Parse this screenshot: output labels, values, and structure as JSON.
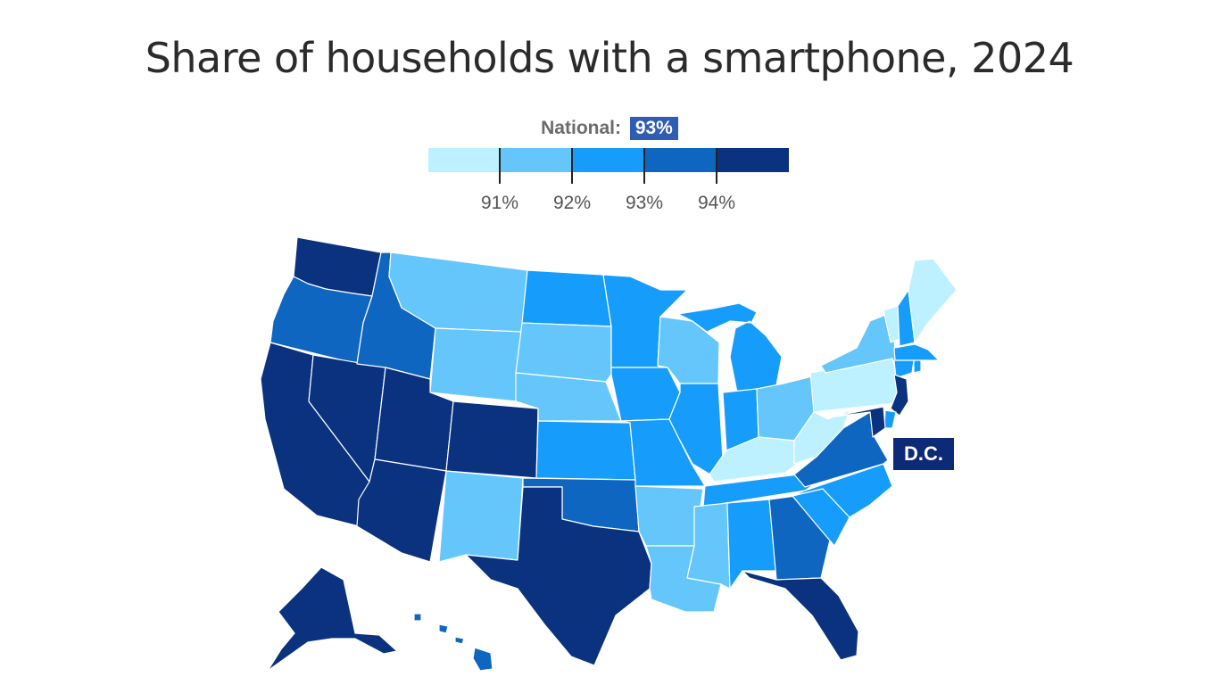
{
  "title": "Share of households with a smartphone, 2024",
  "national": {
    "label": "National:",
    "value": "93%"
  },
  "legend": {
    "colors": [
      "#bdf1ff",
      "#64c6fb",
      "#169cfb",
      "#0e66c0",
      "#0a327f"
    ],
    "tick_labels": [
      "91%",
      "92%",
      "93%",
      "94%"
    ]
  },
  "dc_label": "D.C.",
  "state_colors": {
    "WA": "#0a327f",
    "OR": "#0e66c0",
    "CA": "#0a327f",
    "NV": "#0a327f",
    "ID": "#0e66c0",
    "MT": "#64c6fb",
    "WY": "#64c6fb",
    "UT": "#0a327f",
    "AZ": "#0a327f",
    "CO": "#0a327f",
    "NM": "#64c6fb",
    "ND": "#169cfb",
    "SD": "#64c6fb",
    "NE": "#64c6fb",
    "KS": "#169cfb",
    "OK": "#0e66c0",
    "TX": "#0a327f",
    "MN": "#169cfb",
    "IA": "#169cfb",
    "MO": "#169cfb",
    "AR": "#64c6fb",
    "LA": "#64c6fb",
    "WI": "#64c6fb",
    "IL": "#169cfb",
    "MI": "#169cfb",
    "IN": "#169cfb",
    "OH": "#64c6fb",
    "KY": "#bdf1ff",
    "TN": "#169cfb",
    "MS": "#64c6fb",
    "AL": "#169cfb",
    "GA": "#0e66c0",
    "FL": "#0a327f",
    "SC": "#169cfb",
    "NC": "#169cfb",
    "VA": "#0e66c0",
    "WV": "#bdf1ff",
    "PA": "#bdf1ff",
    "NY": "#64c6fb",
    "VT": "#bdf1ff",
    "NH": "#169cfb",
    "ME": "#bdf1ff",
    "MA": "#169cfb",
    "CT": "#169cfb",
    "RI": "#169cfb",
    "NJ": "#0a327f",
    "DE": "#169cfb",
    "MD": "#0a327f",
    "AK": "#0a327f",
    "HI": "#0e66c0"
  }
}
